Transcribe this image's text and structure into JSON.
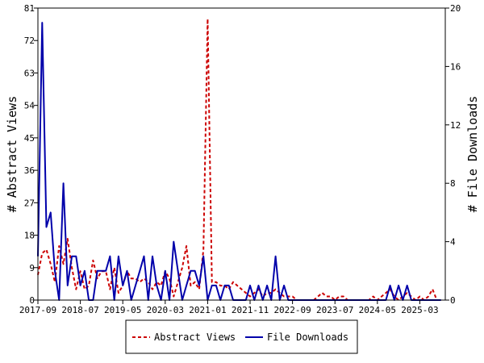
{
  "chart_data": {
    "type": "line",
    "ylabel_left": "# Abstract Views",
    "ylabel_right": "# File Downloads",
    "x_tick_labels": [
      "2017-09",
      "2018-07",
      "2019-05",
      "2020-03",
      "2021-01",
      "2021-11",
      "2022-09",
      "2023-07",
      "2024-05",
      "2025-03"
    ],
    "y_left_ticks": [
      0,
      9,
      18,
      27,
      36,
      45,
      54,
      63,
      72,
      81
    ],
    "y_right_ticks": [
      0,
      4,
      8,
      12,
      16,
      20
    ],
    "ylim_left": [
      0,
      81
    ],
    "ylim_right": [
      0,
      20
    ],
    "x_range": [
      "2017-09",
      "2025-09"
    ],
    "legend_position": "bottom",
    "grid": false,
    "colors": {
      "abstract_views": "#cc0000",
      "file_downloads": "#0000aa"
    },
    "series": [
      {
        "name": "Abstract Views",
        "axis": "left",
        "style": "dashed",
        "x": [
          "2017-09",
          "2017-10",
          "2017-11",
          "2017-12",
          "2018-01",
          "2018-02",
          "2018-03",
          "2018-04",
          "2018-05",
          "2018-06",
          "2018-07",
          "2018-08",
          "2018-09",
          "2018-10",
          "2018-11",
          "2018-12",
          "2019-01",
          "2019-02",
          "2019-03",
          "2019-04",
          "2019-05",
          "2019-06",
          "2019-07",
          "2019-08",
          "2019-09",
          "2019-10",
          "2019-11",
          "2019-12",
          "2020-01",
          "2020-02",
          "2020-03",
          "2020-04",
          "2020-05",
          "2020-06",
          "2020-07",
          "2020-08",
          "2020-09",
          "2020-10",
          "2020-11",
          "2020-12",
          "2021-01",
          "2021-02",
          "2021-03",
          "2021-04",
          "2021-05",
          "2021-06",
          "2021-07",
          "2021-08",
          "2021-09",
          "2021-10",
          "2021-11",
          "2021-12",
          "2022-01",
          "2022-02",
          "2022-03",
          "2022-04",
          "2022-05",
          "2022-06",
          "2022-07",
          "2022-08",
          "2022-09",
          "2022-10",
          "2022-11",
          "2022-12",
          "2023-01",
          "2023-02",
          "2023-03",
          "2023-04",
          "2023-05",
          "2023-06",
          "2023-07",
          "2023-08",
          "2023-09",
          "2023-10",
          "2023-11",
          "2023-12",
          "2024-01",
          "2024-02",
          "2024-03",
          "2024-04",
          "2024-05",
          "2024-06",
          "2024-07",
          "2024-08",
          "2024-09",
          "2024-10",
          "2024-11",
          "2024-12",
          "2025-01",
          "2025-02",
          "2025-03",
          "2025-04",
          "2025-05",
          "2025-06",
          "2025-07",
          "2025-08"
        ],
        "values": [
          7,
          13,
          14,
          10,
          5,
          15,
          10,
          17,
          9,
          3,
          8,
          3,
          4,
          11,
          6,
          8,
          8,
          3,
          9,
          2,
          4,
          8,
          6,
          6,
          5,
          6,
          5,
          3,
          5,
          4,
          8,
          6,
          1,
          5,
          9,
          15,
          4,
          5,
          3,
          14,
          78,
          5,
          5,
          4,
          4,
          3,
          5,
          4,
          3,
          2,
          1,
          2,
          3,
          1,
          2,
          2,
          3,
          2,
          1,
          1,
          1,
          0,
          0,
          0,
          0,
          0,
          1,
          2,
          1,
          1,
          0,
          1,
          1,
          0,
          0,
          0,
          0,
          0,
          0,
          1,
          0,
          1,
          2,
          3,
          1,
          0,
          1,
          2,
          1,
          0,
          1,
          0,
          1,
          3,
          0,
          0
        ]
      },
      {
        "name": "File Downloads",
        "axis": "right",
        "style": "solid",
        "x": [
          "2017-09",
          "2017-10",
          "2017-11",
          "2017-12",
          "2018-01",
          "2018-02",
          "2018-03",
          "2018-04",
          "2018-05",
          "2018-06",
          "2018-07",
          "2018-08",
          "2018-09",
          "2018-10",
          "2018-11",
          "2018-12",
          "2019-01",
          "2019-02",
          "2019-03",
          "2019-04",
          "2019-05",
          "2019-06",
          "2019-07",
          "2019-08",
          "2019-09",
          "2019-10",
          "2019-11",
          "2019-12",
          "2020-01",
          "2020-02",
          "2020-03",
          "2020-04",
          "2020-05",
          "2020-06",
          "2020-07",
          "2020-08",
          "2020-09",
          "2020-10",
          "2020-11",
          "2020-12",
          "2021-01",
          "2021-02",
          "2021-03",
          "2021-04",
          "2021-05",
          "2021-06",
          "2021-07",
          "2021-08",
          "2021-09",
          "2021-10",
          "2021-11",
          "2021-12",
          "2022-01",
          "2022-02",
          "2022-03",
          "2022-04",
          "2022-05",
          "2022-06",
          "2022-07",
          "2022-08",
          "2022-09",
          "2022-10",
          "2022-11",
          "2022-12",
          "2023-01",
          "2023-02",
          "2023-03",
          "2023-04",
          "2023-05",
          "2023-06",
          "2023-07",
          "2023-08",
          "2023-09",
          "2023-10",
          "2023-11",
          "2023-12",
          "2024-01",
          "2024-02",
          "2024-03",
          "2024-04",
          "2024-05",
          "2024-06",
          "2024-07",
          "2024-08",
          "2024-09",
          "2024-10",
          "2024-11",
          "2024-12",
          "2025-01",
          "2025-02",
          "2025-03",
          "2025-04",
          "2025-05",
          "2025-06",
          "2025-07",
          "2025-08"
        ],
        "values": [
          3,
          19,
          5,
          6,
          2,
          0,
          8,
          1,
          3,
          3,
          1,
          2,
          0,
          0,
          2,
          2,
          2,
          3,
          0,
          3,
          1,
          2,
          0,
          1,
          2,
          3,
          0,
          3,
          1,
          0,
          2,
          0,
          4,
          2,
          0,
          1,
          2,
          2,
          1,
          3,
          0,
          1,
          1,
          0,
          1,
          1,
          0,
          0,
          0,
          0,
          1,
          0,
          1,
          0,
          1,
          0,
          3,
          0,
          1,
          0,
          0,
          0,
          0,
          0,
          0,
          0,
          0,
          0,
          0,
          0,
          0,
          0,
          0,
          0,
          0,
          0,
          0,
          0,
          0,
          0,
          0,
          0,
          0,
          1,
          0,
          1,
          0,
          1,
          0,
          0,
          0,
          0,
          0,
          0,
          0,
          0
        ]
      }
    ]
  }
}
